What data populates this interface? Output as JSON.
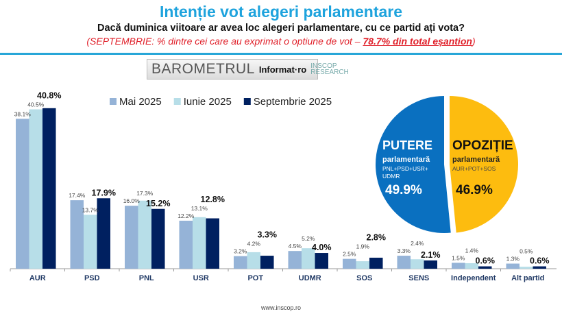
{
  "header": {
    "title": "Intenție vot alegeri parlamentare",
    "question": "Dacă duminica viitoare ar avea loc alegeri parlamentare, cu ce partid ați vota?",
    "note_prefix": "(SEPTEMBRIE: % dintre cei care au exprimat o optiune de vot – ",
    "note_emph": "78.7% din total eșantion",
    "note_suffix": ")"
  },
  "logo": {
    "barometru": "BAROMETRUL",
    "informat": "Informat·ro",
    "inscop": "INSCOP",
    "research": "RESEARCH"
  },
  "footer": "www.inscop.ro",
  "chart_data": [
    {
      "type": "bar",
      "categories": [
        "AUR",
        "PSD",
        "PNL",
        "USR",
        "POT",
        "UDMR",
        "SOS",
        "SENS",
        "Independent",
        "Alt partid"
      ],
      "series": [
        {
          "name": "Mai 2025",
          "color": "#95b3d7",
          "values": [
            38.1,
            17.4,
            16.0,
            12.2,
            3.2,
            4.5,
            2.5,
            3.3,
            1.5,
            1.3
          ]
        },
        {
          "name": "Iunie 2025",
          "color": "#b7dee8",
          "values": [
            40.5,
            13.7,
            17.3,
            13.1,
            4.2,
            5.2,
            1.9,
            2.4,
            1.4,
            0.5
          ]
        },
        {
          "name": "Septembrie 2025",
          "color": "#002060",
          "values": [
            40.8,
            17.9,
            15.2,
            12.8,
            3.3,
            4.0,
            2.8,
            2.1,
            0.6,
            0.6
          ]
        }
      ],
      "legend": "top",
      "grid": false,
      "unit": "%"
    },
    {
      "type": "pie",
      "slices": [
        {
          "title": "PUTERE",
          "subtitle": "parlamentară",
          "detail": "PNL+PSD+USR+ UDMR",
          "value": 49.9,
          "label": "49.9%",
          "color": "#0a70c0"
        },
        {
          "title": "OPOZIȚIE",
          "subtitle": "parlamentară",
          "detail": "AUR+POT+SOS",
          "value": 46.9,
          "label": "46.9%",
          "color": "#fdbc0f"
        }
      ]
    }
  ]
}
